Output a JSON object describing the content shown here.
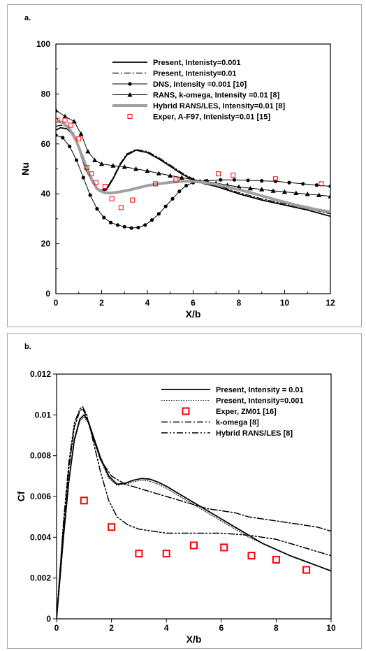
{
  "chart_data": [
    {
      "id": "a",
      "type": "line",
      "panel_label": "a.",
      "xlabel": "X/b",
      "ylabel": "Nu",
      "xlim": [
        0,
        12
      ],
      "ylim": [
        0,
        100
      ],
      "xticks": [
        "0",
        "2",
        "4",
        "6",
        "8",
        "10",
        "12"
      ],
      "yticks": [
        "0",
        "20",
        "40",
        "60",
        "80",
        "100"
      ],
      "grid": false,
      "legend_position": "top-right",
      "series": [
        {
          "name": "Present, Intenisty=0.001",
          "style": "solid",
          "color": "#000000",
          "width": 1.8,
          "marker": "none",
          "x": [
            0,
            0.2,
            0.5,
            0.8,
            1.0,
            1.3,
            1.6,
            1.9,
            2.2,
            2.5,
            2.8,
            3.1,
            3.5,
            4.0,
            4.5,
            5.0,
            5.5,
            6.0,
            6.5,
            7,
            8,
            9,
            10,
            11,
            12
          ],
          "y": [
            65.5,
            66.5,
            66,
            63,
            58,
            50,
            44.5,
            41,
            41.5,
            46,
            51.5,
            55.5,
            57.5,
            56.5,
            54,
            51,
            48,
            45.5,
            44,
            43,
            40,
            37.5,
            35.5,
            33.5,
            31
          ]
        },
        {
          "name": "Present, Intenisty=0.01",
          "style": "dashdot",
          "color": "#000000",
          "width": 1.2,
          "marker": "none",
          "x": [
            0,
            0.2,
            0.5,
            0.8,
            1.0,
            1.3,
            1.6,
            1.9,
            2.2,
            2.5,
            2.8,
            3.1,
            3.5,
            4.0,
            4.5,
            5.0,
            5.5,
            6.0,
            6.5,
            7,
            8,
            9,
            10,
            11,
            12
          ],
          "y": [
            67,
            67.5,
            67,
            64,
            59,
            51,
            45,
            41.5,
            42,
            46.5,
            52,
            56,
            57.8,
            57,
            54.5,
            51.5,
            48.5,
            46,
            44.5,
            43.5,
            40.5,
            38,
            36,
            34,
            32
          ]
        },
        {
          "name": "DNS, Intensity =0.001 [10]",
          "style": "solid",
          "color": "#000000",
          "width": 1.0,
          "marker": "circle",
          "x": [
            0,
            0.3,
            0.6,
            0.9,
            1.2,
            1.5,
            1.8,
            2.1,
            2.4,
            2.7,
            3.0,
            3.3,
            3.6,
            3.9,
            4.2,
            4.5,
            4.8,
            5.1,
            5.4,
            5.7,
            6.0,
            6.3,
            6.6,
            7.2,
            7.8,
            8.4,
            9.0,
            9.6,
            10.2,
            10.8,
            11.4,
            12.0
          ],
          "y": [
            63.5,
            62.5,
            59,
            53.5,
            46.5,
            39.5,
            34,
            30.5,
            28.5,
            27.5,
            26.8,
            26.3,
            26.5,
            27.5,
            29.5,
            32,
            35,
            38,
            41,
            43.3,
            44.5,
            45,
            45.2,
            45.6,
            45.6,
            45.4,
            45.2,
            45,
            44.5,
            44,
            43.5,
            43
          ]
        },
        {
          "name": "RANS, k-omega, Intensity =0.01 [8]",
          "style": "solid",
          "color": "#000000",
          "width": 1.0,
          "marker": "triangle",
          "x": [
            0,
            0.4,
            0.8,
            1.1,
            1.4,
            1.7,
            2.0,
            2.5,
            3.0,
            3.5,
            4.0,
            4.5,
            5.0,
            5.5,
            6.0,
            6.5,
            7.0,
            7.5,
            8.0,
            8.5,
            9.0,
            9.5,
            10.0,
            10.5,
            11.0,
            11.5,
            12.0
          ],
          "y": [
            73.5,
            71,
            69,
            64,
            57,
            53.5,
            52,
            51.3,
            50.8,
            50,
            49.2,
            48.2,
            47.3,
            46.5,
            45.7,
            45,
            44.3,
            43.5,
            42.8,
            42.2,
            41.8,
            41.2,
            40.8,
            40.3,
            39.9,
            39.5,
            39
          ]
        },
        {
          "name": "Hybrid RANS/LES, Intensity=0.01 [8]",
          "style": "solid",
          "color": "#a0a0a0",
          "width": 4.0,
          "marker": "none",
          "x": [
            0,
            0.3,
            0.6,
            0.9,
            1.2,
            1.5,
            1.8,
            2.1,
            2.4,
            2.8,
            3.2,
            3.6,
            4.0,
            4.5,
            5.0,
            5.5,
            6.0,
            6.5,
            7.0,
            7.5,
            8.0,
            8.5,
            9.0,
            9.5,
            10.0,
            10.5,
            11.0,
            11.5,
            12.0
          ],
          "y": [
            69.5,
            68.5,
            66,
            61,
            54,
            47,
            42,
            40.5,
            40.3,
            40.8,
            41.5,
            42.4,
            43.3,
            44,
            44.6,
            45,
            45,
            44.5,
            43.8,
            42.8,
            41.7,
            40.5,
            39.2,
            37.9,
            36.7,
            35.5,
            34.5,
            33.5,
            32.8
          ]
        },
        {
          "name": "Exper, A-F97, Intenisty=0.01 [15]",
          "style": "none",
          "color": "#ff0000",
          "width": 1.0,
          "marker": "square-open",
          "x": [
            0.05,
            0.4,
            0.65,
            1.0,
            1.35,
            1.55,
            1.75,
            2.15,
            2.45,
            2.85,
            3.35,
            4.35,
            5.25,
            7.1,
            7.75,
            9.6,
            11.6
          ],
          "y": [
            69.5,
            69.5,
            67.5,
            62,
            50.5,
            48,
            44.5,
            43,
            38,
            34.5,
            37.5,
            44,
            45.5,
            48,
            47.5,
            46,
            44
          ]
        }
      ]
    },
    {
      "id": "b",
      "type": "line",
      "panel_label": "b.",
      "xlabel": "X/b",
      "ylabel": "Cf",
      "xlim": [
        0,
        10
      ],
      "ylim": [
        0,
        0.012
      ],
      "xticks": [
        "0",
        "2",
        "4",
        "6",
        "8",
        "10"
      ],
      "yticks": [
        "0",
        "0.002",
        "0.004",
        "0.006",
        "0.008",
        "0.01",
        "0.012"
      ],
      "grid": false,
      "legend_position": "top-right",
      "series": [
        {
          "name": "Present, Intensity = 0.01",
          "style": "solid",
          "color": "#000000",
          "width": 1.8,
          "marker": "none",
          "x": [
            0,
            0.1,
            0.25,
            0.45,
            0.65,
            0.85,
            1.0,
            1.15,
            1.35,
            1.6,
            1.9,
            2.2,
            2.5,
            2.8,
            3.1,
            3.4,
            3.7,
            4.0,
            4.5,
            5.0,
            5.5,
            6.0,
            6.5,
            7.0,
            7.5,
            8.0,
            8.5,
            9.0,
            9.5,
            10.0
          ],
          "y": [
            0.0,
            0.0016,
            0.004,
            0.0068,
            0.0088,
            0.0098,
            0.01,
            0.0097,
            0.0089,
            0.0079,
            0.007,
            0.0066,
            0.00665,
            0.0068,
            0.00688,
            0.00685,
            0.0067,
            0.0065,
            0.0061,
            0.0057,
            0.0053,
            0.0049,
            0.0045,
            0.0041,
            0.0037,
            0.0034,
            0.0031,
            0.00285,
            0.0026,
            0.00235
          ]
        },
        {
          "name": "Present, Intensity=0.001",
          "style": "dotted",
          "color": "#000000",
          "width": 1.0,
          "marker": "none",
          "x": [
            0,
            0.1,
            0.25,
            0.45,
            0.65,
            0.85,
            1.0,
            1.15,
            1.35,
            1.6,
            1.9,
            2.2,
            2.5,
            2.8,
            3.1,
            3.4,
            3.7,
            4.0,
            4.5,
            5.0,
            5.5,
            6.0,
            6.5,
            7.0,
            7.5,
            8.0,
            8.5,
            9.0,
            9.5,
            10.0
          ],
          "y": [
            0.0,
            0.0015,
            0.0039,
            0.0067,
            0.0087,
            0.0097,
            0.0099,
            0.0096,
            0.0088,
            0.0078,
            0.0069,
            0.00655,
            0.0066,
            0.00672,
            0.0068,
            0.00675,
            0.0066,
            0.0064,
            0.006,
            0.0056,
            0.0052,
            0.0048,
            0.0044,
            0.004,
            0.0037,
            0.0034,
            0.0031,
            0.00285,
            0.0026,
            0.00235
          ]
        },
        {
          "name": "Exper, ZM01 [16]",
          "style": "none",
          "color": "#ff0000",
          "width": 2.0,
          "marker": "square-open",
          "x": [
            1.0,
            2.0,
            3.0,
            4.0,
            5.0,
            6.1,
            7.1,
            8.0,
            9.1
          ],
          "y": [
            0.0058,
            0.0045,
            0.0032,
            0.0032,
            0.0036,
            0.0035,
            0.0031,
            0.0029,
            0.0024
          ]
        },
        {
          "name": "k-omega [8]",
          "style": "dashdot",
          "color": "#000000",
          "width": 1.5,
          "marker": "none",
          "x": [
            0,
            0.1,
            0.25,
            0.45,
            0.65,
            0.85,
            0.95,
            1.1,
            1.3,
            1.6,
            2.0,
            2.5,
            3.0,
            3.5,
            4.0,
            4.5,
            5.0,
            5.5,
            6.0,
            6.5,
            7.0,
            7.5,
            8.0,
            8.5,
            9.0,
            9.5,
            10.0
          ],
          "y": [
            0.0,
            0.0018,
            0.0045,
            0.0074,
            0.0094,
            0.0102,
            0.0103,
            0.0099,
            0.009,
            0.0078,
            0.007,
            0.0066,
            0.0064,
            0.0062,
            0.006,
            0.0058,
            0.0056,
            0.0054,
            0.0053,
            0.0052,
            0.005,
            0.0049,
            0.0048,
            0.0047,
            0.0046,
            0.0045,
            0.0043
          ]
        },
        {
          "name": "Hybrid RANS/LES [8]",
          "style": "dashdotdot",
          "color": "#000000",
          "width": 1.5,
          "marker": "none",
          "x": [
            0,
            0.1,
            0.25,
            0.45,
            0.65,
            0.85,
            0.95,
            1.1,
            1.3,
            1.6,
            1.9,
            2.2,
            2.6,
            3.0,
            3.5,
            4.0,
            5.0,
            6.0,
            7.0,
            8.0,
            8.5,
            9.0,
            9.5,
            10.0
          ],
          "y": [
            0.0,
            0.0019,
            0.0047,
            0.0077,
            0.0096,
            0.0103,
            0.0104,
            0.01,
            0.0089,
            0.0072,
            0.0058,
            0.005,
            0.0046,
            0.0044,
            0.0043,
            0.0042,
            0.0042,
            0.0042,
            0.0041,
            0.0039,
            0.0037,
            0.0035,
            0.0033,
            0.0031
          ]
        }
      ]
    }
  ]
}
